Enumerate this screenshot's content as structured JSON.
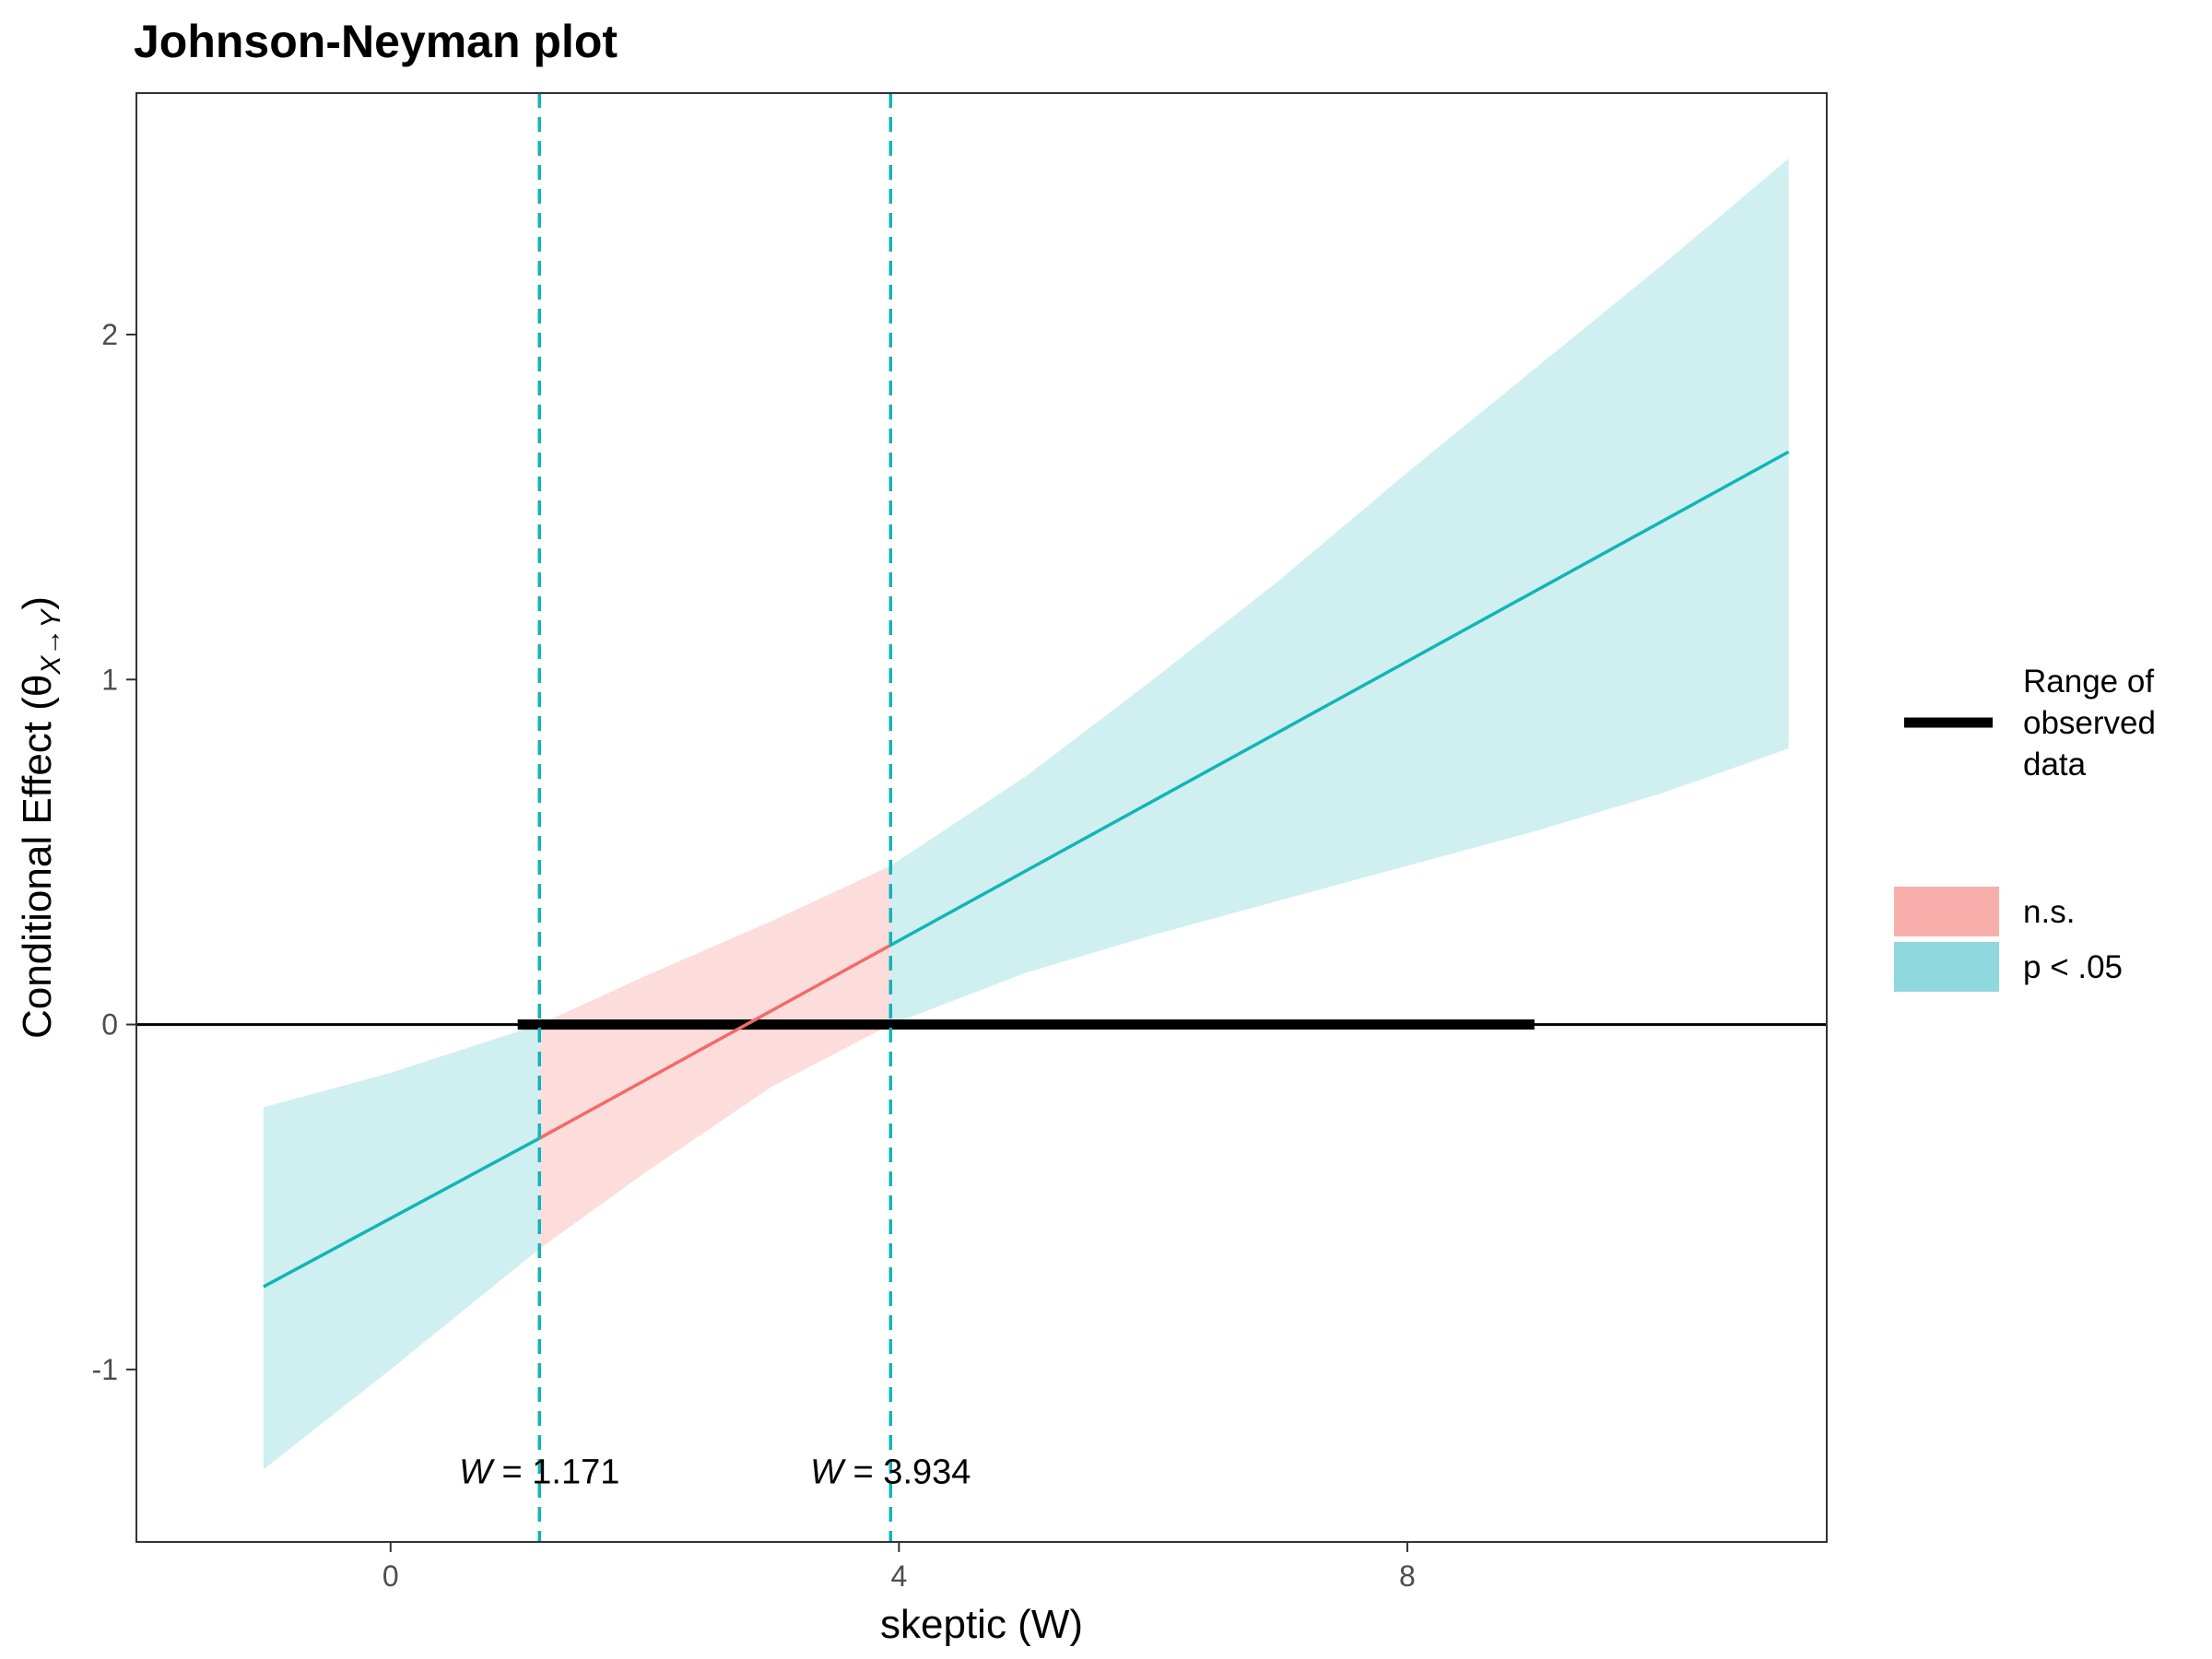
{
  "chart_data": {
    "type": "line",
    "title": "Johnson-Neyman plot",
    "xlabel": "skeptic (W)",
    "ylabel": {
      "prefix": "Conditional Effect (θ",
      "subscript": "X→Y",
      "suffix": ")"
    },
    "xlim": [
      -2,
      11.3
    ],
    "ylim": [
      -1.5,
      2.7
    ],
    "x_ticks": [
      0,
      4,
      8
    ],
    "y_ticks": [
      -1,
      0,
      1,
      2
    ],
    "x_tick_labels": [
      "0",
      "4",
      "8"
    ],
    "y_tick_labels": [
      "-1",
      "0",
      "1",
      "2"
    ],
    "grid": false,
    "zero_line": true,
    "effect_line": {
      "x": [
        -1,
        1.171,
        3.934,
        11
      ],
      "y": [
        -0.76,
        -0.33,
        0.23,
        1.66
      ]
    },
    "confidence_band": {
      "x": [
        -1,
        0,
        1.171,
        2,
        3,
        3.934,
        5,
        6,
        7,
        8,
        9,
        10,
        11
      ],
      "lower": [
        -1.29,
        -1.0,
        -0.65,
        -0.43,
        -0.18,
        0.0,
        0.15,
        0.26,
        0.36,
        0.46,
        0.56,
        0.67,
        0.8
      ],
      "upper": [
        -0.24,
        -0.14,
        0.0,
        0.14,
        0.3,
        0.46,
        0.72,
        1.0,
        1.29,
        1.6,
        1.9,
        2.2,
        2.51
      ]
    },
    "jn_points": [
      1.171,
      3.934
    ],
    "jn_labels": [
      {
        "var": "W",
        "text": " = 1.171"
      },
      {
        "var": "W",
        "text": " = 3.934"
      }
    ],
    "observed_range": [
      1,
      9
    ],
    "legend": {
      "placement": "right",
      "line_entry": [
        "Range of",
        "observed",
        "data"
      ],
      "fill_entries": [
        {
          "label": "n.s.",
          "color": "#F8AFAB"
        },
        {
          "label": "p < .05",
          "color": "#8FD8DD"
        }
      ]
    },
    "colors": {
      "significant_line": "#12B5B5",
      "nonsignificant_line": "#F26B66",
      "significant_fill": "#D0EFF1",
      "nonsignificant_fill": "#FDDCDC",
      "jn_line": "#12B5B5",
      "range_bar": "#000000"
    }
  }
}
